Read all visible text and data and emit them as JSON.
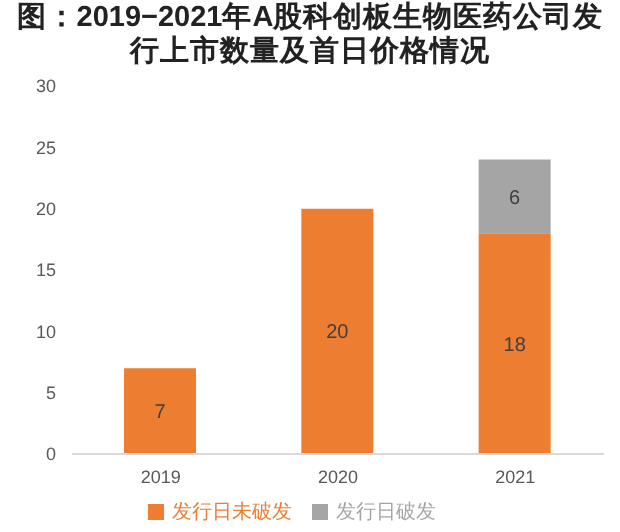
{
  "chart_data": {
    "type": "bar",
    "title": "图：2019−2021年A股科创板生物医药公司发行上市数量及首日价格情况",
    "categories": [
      "2019",
      "2020",
      "2021"
    ],
    "stacked": true,
    "series": [
      {
        "name": "发行日未破发",
        "color": "#ed7d31",
        "values": [
          7,
          20,
          18
        ]
      },
      {
        "name": "发行日破发",
        "color": "#a5a5a5",
        "values": [
          null,
          null,
          6
        ]
      }
    ],
    "data_labels": true,
    "ylim": [
      0,
      30
    ],
    "yticks": [
      0,
      5,
      10,
      15,
      20,
      25,
      30
    ],
    "grid": false,
    "legend": "bottom"
  }
}
